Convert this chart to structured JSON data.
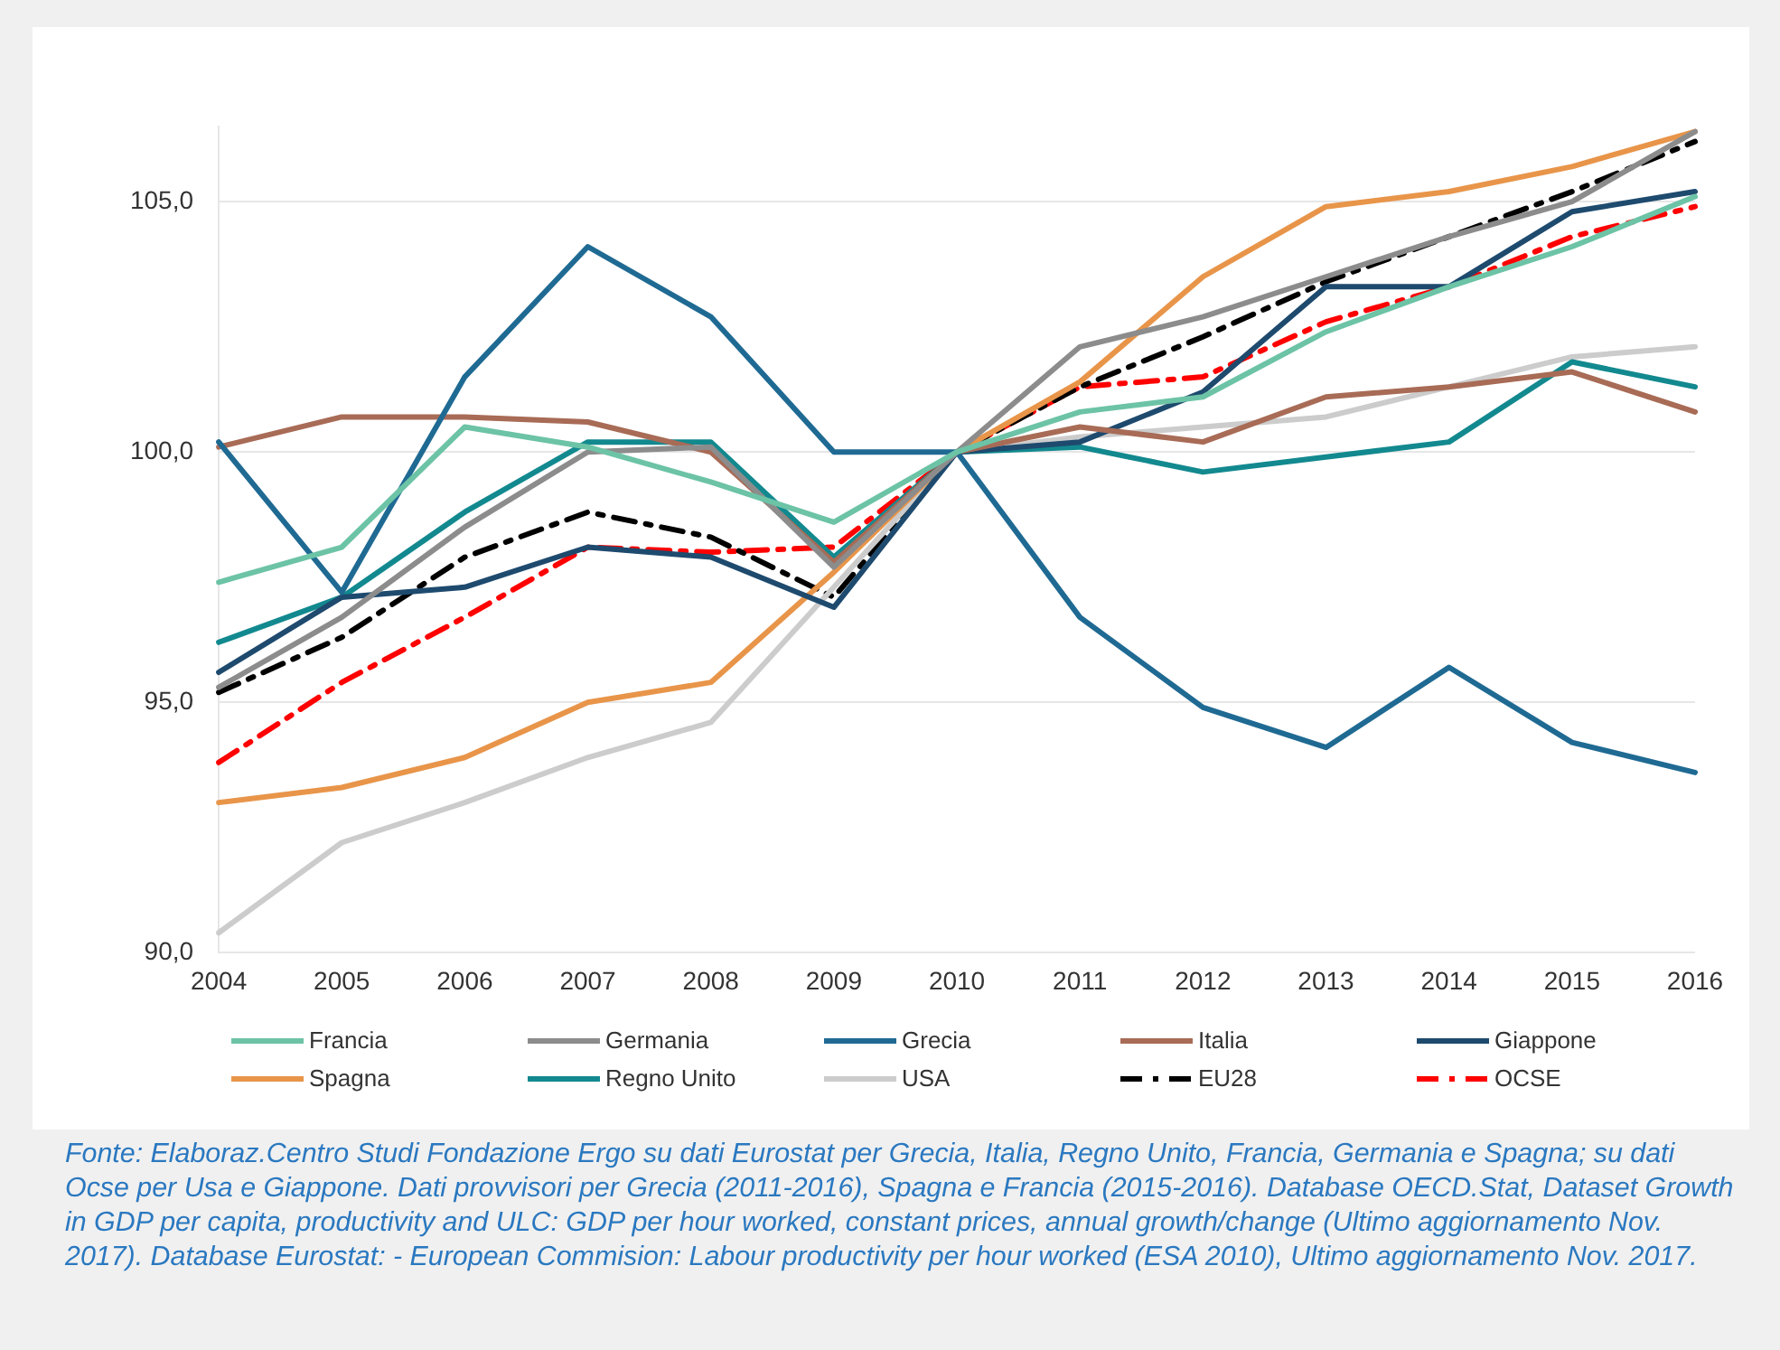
{
  "chart_data": {
    "type": "line",
    "categories": [
      "2004",
      "2005",
      "2006",
      "2007",
      "2008",
      "2009",
      "2010",
      "2011",
      "2012",
      "2013",
      "2014",
      "2015",
      "2016"
    ],
    "series": [
      {
        "name": "Francia",
        "color": "#6cc3a6",
        "values": [
          97.4,
          98.1,
          100.5,
          100.1,
          99.4,
          98.6,
          100,
          100.8,
          101.1,
          102.4,
          103.3,
          104.1,
          105.1
        ]
      },
      {
        "name": "Germania",
        "color": "#8c8c8c",
        "values": [
          95.3,
          96.7,
          98.5,
          100.0,
          100.1,
          97.7,
          100,
          102.1,
          102.7,
          103.5,
          104.3,
          105.0,
          106.4
        ]
      },
      {
        "name": "Grecia",
        "color": "#1f6a93",
        "values": [
          100.2,
          97.2,
          101.5,
          104.1,
          102.7,
          100,
          100,
          96.7,
          94.9,
          94.1,
          95.7,
          94.2,
          93.6
        ]
      },
      {
        "name": "Italia",
        "color": "#a86b56",
        "values": [
          100.1,
          100.7,
          100.7,
          100.6,
          100.0,
          97.8,
          100,
          100.5,
          100.2,
          101.1,
          101.3,
          101.6,
          100.8
        ]
      },
      {
        "name": "Giappone",
        "color": "#1e4a6e",
        "values": [
          95.6,
          97.1,
          97.3,
          98.1,
          97.9,
          96.9,
          100,
          100.2,
          101.2,
          103.3,
          103.3,
          104.8,
          105.2
        ]
      },
      {
        "name": "Spagna",
        "color": "#e8954a",
        "values": [
          93.0,
          93.3,
          93.9,
          95.0,
          95.4,
          97.6,
          100,
          101.4,
          103.5,
          104.9,
          105.2,
          105.7,
          106.4
        ]
      },
      {
        "name": "Regno Unito",
        "color": "#12898f",
        "values": [
          96.2,
          97.1,
          98.8,
          100.2,
          100.2,
          97.9,
          100,
          100.1,
          99.6,
          99.9,
          100.2,
          101.8,
          101.3
        ]
      },
      {
        "name": "USA",
        "color": "#cccccc",
        "values": [
          90.4,
          92.2,
          93.0,
          93.9,
          94.6,
          97.3,
          100,
          100.3,
          100.5,
          100.7,
          101.3,
          101.9,
          102.1
        ]
      },
      {
        "name": "EU28",
        "color": "#000000",
        "line_style": "dashed",
        "values": [
          95.2,
          96.3,
          97.9,
          98.8,
          98.3,
          97.1,
          100,
          101.3,
          102.3,
          103.4,
          104.3,
          105.2,
          106.2
        ]
      },
      {
        "name": "OCSE",
        "color": "#ff0000",
        "line_style": "dashed",
        "values": [
          93.8,
          95.4,
          96.7,
          98.1,
          98.0,
          98.1,
          100,
          101.3,
          101.5,
          102.6,
          103.3,
          104.3,
          104.9
        ]
      }
    ],
    "ylim": [
      90,
      106.5
    ],
    "yticks": [
      {
        "value": 90,
        "label": "90,0"
      },
      {
        "value": 95,
        "label": "95,0"
      },
      {
        "value": 100,
        "label": "100,0"
      },
      {
        "value": 105,
        "label": "105,0"
      }
    ],
    "grid": "y",
    "legend": "bottom",
    "marker": "none",
    "line_style": "solid",
    "annotations": [
      "Fonte: Elaboraz.Centro Studi Fondazione Ergo su dati Eurostat per Grecia, Italia, Regno Unito, Francia, Germania e Spagna; su dati Ocse per Usa e Giappone. Dati provvisori per Grecia (2011-2016), Spagna e Francia (2015-2016). Database OECD.Stat, Dataset Growth in GDP per capita, productivity and ULC: GDP per hour worked, constant prices, annual growth/change (Ultimo aggiornamento Nov. 2017). Database Eurostat: - European Commision: Labour productivity per hour worked (ESA 2010), Ultimo aggiornamento Nov. 2017."
    ]
  }
}
